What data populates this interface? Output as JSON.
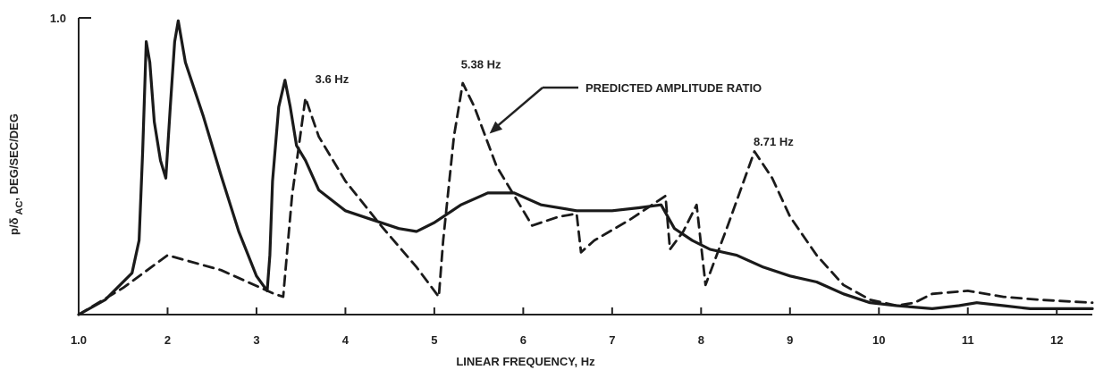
{
  "chart_data": {
    "type": "line",
    "title": "",
    "xlabel": "LINEAR FREQUENCY, Hz",
    "ylabel": "p/δ AC, DEG/SEC/DEG",
    "xlim": [
      1.0,
      12.4
    ],
    "ylim": [
      0,
      1.0
    ],
    "x_ticks": [
      {
        "value": 1.0,
        "label": "1.0"
      },
      {
        "value": 2,
        "label": "2"
      },
      {
        "value": 3,
        "label": "3"
      },
      {
        "value": 4,
        "label": "4"
      },
      {
        "value": 5,
        "label": "5"
      },
      {
        "value": 6,
        "label": "6"
      },
      {
        "value": 7,
        "label": "7"
      },
      {
        "value": 8,
        "label": "8"
      },
      {
        "value": 9,
        "label": "9"
      },
      {
        "value": 10,
        "label": "10"
      },
      {
        "value": 11,
        "label": "11"
      },
      {
        "value": 12,
        "label": "12"
      }
    ],
    "y_ticks": [
      {
        "value": 1.0,
        "label": "1.0"
      }
    ],
    "grid": false,
    "series": [
      {
        "style": "solid",
        "points": [
          [
            1.0,
            0.0
          ],
          [
            1.3,
            0.05
          ],
          [
            1.6,
            0.14
          ],
          [
            1.68,
            0.25
          ],
          [
            1.72,
            0.55
          ],
          [
            1.76,
            0.92
          ],
          [
            1.8,
            0.85
          ],
          [
            1.85,
            0.65
          ],
          [
            1.92,
            0.52
          ],
          [
            1.98,
            0.46
          ],
          [
            2.03,
            0.7
          ],
          [
            2.08,
            0.92
          ],
          [
            2.12,
            0.99
          ],
          [
            2.2,
            0.85
          ],
          [
            2.4,
            0.67
          ],
          [
            2.6,
            0.47
          ],
          [
            2.8,
            0.28
          ],
          [
            3.0,
            0.13
          ],
          [
            3.12,
            0.08
          ],
          [
            3.15,
            0.2
          ],
          [
            3.18,
            0.45
          ],
          [
            3.25,
            0.7
          ],
          [
            3.32,
            0.79
          ],
          [
            3.38,
            0.7
          ],
          [
            3.45,
            0.57
          ],
          [
            3.55,
            0.52
          ],
          [
            3.7,
            0.42
          ],
          [
            4.0,
            0.35
          ],
          [
            4.3,
            0.32
          ],
          [
            4.6,
            0.29
          ],
          [
            4.8,
            0.28
          ],
          [
            5.0,
            0.31
          ],
          [
            5.3,
            0.37
          ],
          [
            5.6,
            0.41
          ],
          [
            5.9,
            0.41
          ],
          [
            6.2,
            0.37
          ],
          [
            6.6,
            0.35
          ],
          [
            7.0,
            0.35
          ],
          [
            7.3,
            0.36
          ],
          [
            7.55,
            0.37
          ],
          [
            7.7,
            0.29
          ],
          [
            7.9,
            0.25
          ],
          [
            8.1,
            0.22
          ],
          [
            8.4,
            0.2
          ],
          [
            8.7,
            0.16
          ],
          [
            9.0,
            0.13
          ],
          [
            9.3,
            0.11
          ],
          [
            9.6,
            0.07
          ],
          [
            9.9,
            0.04
          ],
          [
            10.2,
            0.03
          ],
          [
            10.6,
            0.02
          ],
          [
            10.9,
            0.03
          ],
          [
            11.1,
            0.04
          ],
          [
            11.4,
            0.03
          ],
          [
            11.7,
            0.02
          ],
          [
            12.0,
            0.02
          ],
          [
            12.4,
            0.02
          ]
        ]
      },
      {
        "style": "dashed",
        "points": [
          [
            1.0,
            0.0
          ],
          [
            1.5,
            0.09
          ],
          [
            2.0,
            0.2
          ],
          [
            2.6,
            0.15
          ],
          [
            3.2,
            0.07
          ],
          [
            3.3,
            0.06
          ],
          [
            3.4,
            0.4
          ],
          [
            3.55,
            0.73
          ],
          [
            3.7,
            0.6
          ],
          [
            4.0,
            0.45
          ],
          [
            4.4,
            0.3
          ],
          [
            4.8,
            0.16
          ],
          [
            5.05,
            0.06
          ],
          [
            5.1,
            0.25
          ],
          [
            5.22,
            0.6
          ],
          [
            5.32,
            0.78
          ],
          [
            5.45,
            0.7
          ],
          [
            5.7,
            0.5
          ],
          [
            6.0,
            0.35
          ],
          [
            6.1,
            0.3
          ],
          [
            6.4,
            0.33
          ],
          [
            6.6,
            0.34
          ],
          [
            6.65,
            0.21
          ],
          [
            6.8,
            0.25
          ],
          [
            7.2,
            0.32
          ],
          [
            7.6,
            0.4
          ],
          [
            7.65,
            0.22
          ],
          [
            7.8,
            0.28
          ],
          [
            7.95,
            0.37
          ],
          [
            8.05,
            0.1
          ],
          [
            8.3,
            0.3
          ],
          [
            8.6,
            0.55
          ],
          [
            8.8,
            0.46
          ],
          [
            9.0,
            0.33
          ],
          [
            9.3,
            0.2
          ],
          [
            9.6,
            0.1
          ],
          [
            9.9,
            0.05
          ],
          [
            10.2,
            0.03
          ],
          [
            10.4,
            0.04
          ],
          [
            10.6,
            0.07
          ],
          [
            11.0,
            0.08
          ],
          [
            11.4,
            0.06
          ],
          [
            11.8,
            0.05
          ],
          [
            12.4,
            0.04
          ]
        ]
      }
    ],
    "annotations": [
      {
        "text": "3.6 Hz",
        "x": 3.6,
        "y": 0.78
      },
      {
        "text": "5.38 Hz",
        "x": 5.38,
        "y": 0.83
      },
      {
        "text": "PREDICTED AMPLITUDE RATIO",
        "x": 6.7,
        "y": 0.75
      },
      {
        "text": "8.71 Hz",
        "x": 8.71,
        "y": 0.57
      }
    ]
  }
}
